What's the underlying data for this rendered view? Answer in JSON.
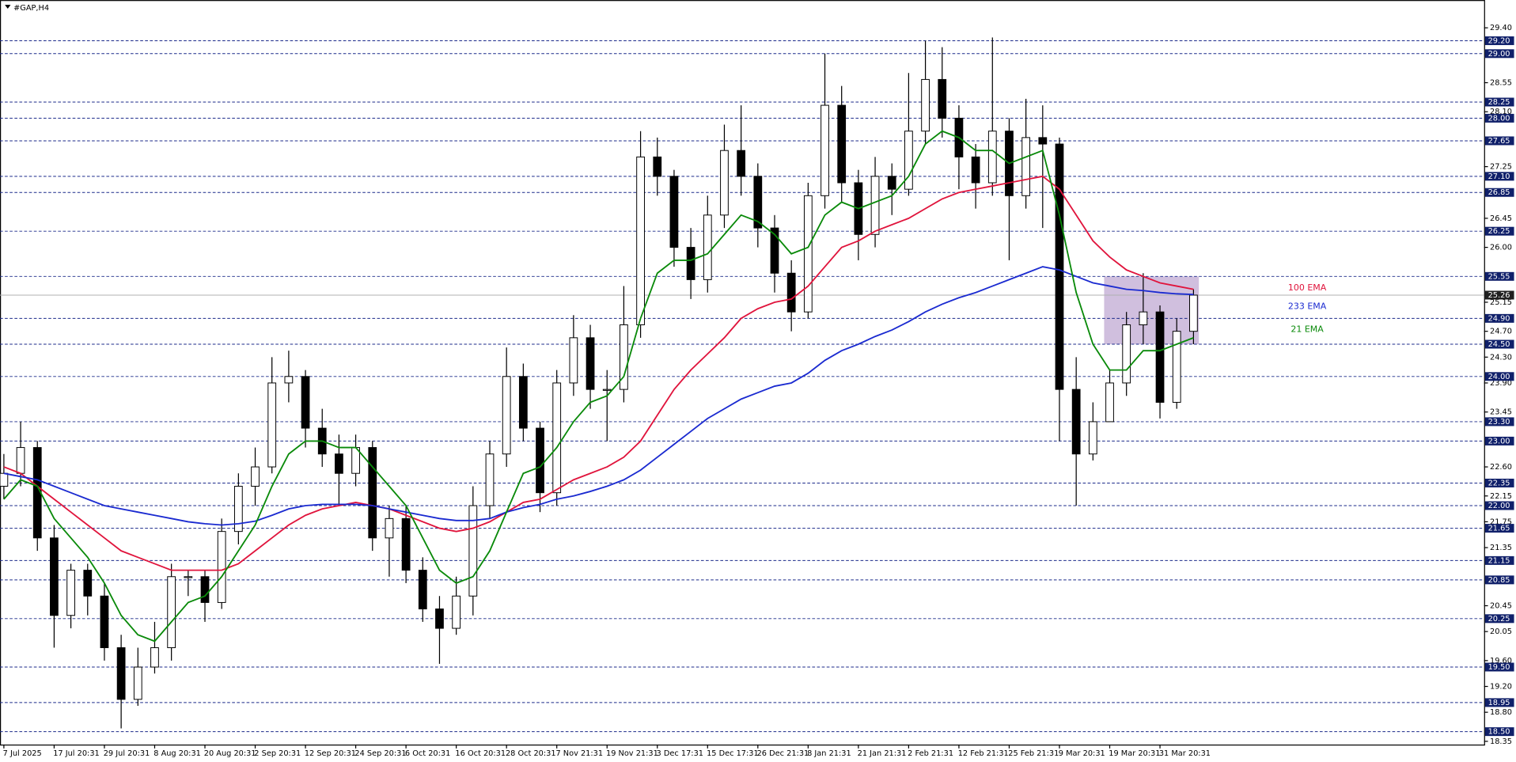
{
  "chart_data": {
    "type": "candlestick",
    "title": "#GAP,H4",
    "categories": [
      "7 Jul 2025",
      null,
      null,
      "17 Jul 20:31",
      null,
      null,
      "29 Jul 20:31",
      null,
      null,
      "8 Aug 20:31",
      null,
      null,
      "20 Aug 20:31",
      null,
      null,
      "2 Sep 20:31",
      null,
      null,
      "12 Sep 20:31",
      null,
      null,
      "24 Sep 20:31",
      null,
      null,
      "6 Oct 20:31",
      null,
      null,
      "16 Oct 20:31",
      null,
      null,
      "28 Oct 20:31",
      null,
      null,
      "7 Nov 21:31",
      null,
      null,
      "19 Nov 21:31",
      null,
      null,
      "3 Dec 17:31",
      null,
      null,
      "15 Dec 17:31",
      null,
      null,
      "26 Dec 21:31",
      null,
      null,
      "8 Jan 21:31",
      null,
      null,
      "21 Jan 21:31",
      null,
      null,
      "2 Feb 21:31",
      null,
      null,
      "12 Feb 21:31",
      null,
      null,
      "25 Feb 21:31",
      null,
      null,
      "9 Mar 20:31",
      null,
      null,
      "19 Mar 20:31",
      null,
      null,
      "31 Mar 20:31",
      null,
      null
    ],
    "open": [
      22.3,
      22.5,
      22.9,
      21.5,
      20.3,
      21.0,
      20.6,
      19.8,
      19.0,
      19.5,
      19.8,
      20.9,
      20.9,
      20.5,
      21.6,
      22.3,
      22.6,
      23.9,
      24.0,
      23.2,
      22.8,
      22.5,
      22.9,
      21.5,
      21.8,
      21.0,
      20.4,
      20.1,
      20.6,
      22.0,
      22.8,
      24.0,
      23.2,
      22.2,
      23.9,
      24.6,
      23.8,
      23.8,
      24.8,
      27.4,
      27.1,
      26.0,
      25.5,
      26.5,
      27.5,
      27.1,
      26.3,
      25.6,
      25.0,
      26.8,
      28.2,
      27.0,
      26.2,
      27.1,
      26.9,
      27.8,
      28.6,
      28.0,
      27.4,
      27.0,
      27.8,
      26.8,
      27.7,
      27.6,
      23.8,
      22.8,
      23.3,
      23.9,
      24.8,
      25.0,
      23.6,
      24.7
    ],
    "high": [
      22.8,
      23.3,
      23.0,
      21.7,
      21.1,
      21.1,
      20.8,
      20.0,
      19.8,
      20.2,
      21.1,
      21.0,
      21.0,
      21.8,
      22.5,
      22.9,
      24.3,
      24.4,
      24.1,
      23.5,
      23.1,
      23.1,
      23.0,
      22.0,
      22.0,
      21.2,
      20.6,
      20.9,
      22.3,
      23.0,
      24.45,
      24.2,
      23.3,
      24.1,
      24.95,
      24.8,
      24.1,
      25.4,
      27.8,
      27.7,
      27.2,
      26.3,
      26.8,
      27.9,
      28.2,
      27.3,
      26.5,
      25.8,
      27.0,
      29.0,
      28.5,
      27.2,
      27.4,
      27.3,
      28.7,
      29.2,
      29.1,
      28.2,
      27.6,
      29.25,
      28.0,
      28.3,
      28.2,
      27.7,
      24.3,
      23.6,
      24.1,
      25.0,
      25.6,
      25.1,
      24.9,
      25.35
    ],
    "low": [
      22.1,
      22.3,
      21.3,
      19.8,
      20.1,
      20.3,
      19.6,
      18.55,
      18.9,
      19.4,
      19.6,
      20.6,
      20.2,
      20.4,
      21.4,
      22.0,
      22.5,
      23.6,
      22.9,
      22.6,
      22.0,
      22.3,
      21.3,
      20.9,
      20.8,
      20.2,
      19.55,
      20.0,
      20.3,
      21.8,
      22.6,
      23.0,
      21.9,
      22.0,
      23.7,
      23.5,
      23.0,
      23.6,
      24.6,
      26.8,
      25.7,
      25.2,
      25.3,
      26.3,
      26.8,
      26.0,
      25.3,
      24.7,
      24.9,
      26.6,
      26.7,
      25.8,
      26.0,
      26.5,
      26.8,
      27.6,
      27.7,
      26.9,
      26.6,
      26.8,
      25.8,
      26.6,
      26.3,
      23.0,
      22.0,
      22.7,
      23.3,
      23.7,
      24.5,
      23.35,
      23.5,
      24.5
    ],
    "close": [
      22.5,
      22.9,
      21.5,
      20.3,
      21.0,
      20.6,
      19.8,
      19.0,
      19.5,
      19.8,
      20.9,
      20.9,
      20.5,
      21.6,
      22.3,
      22.6,
      23.9,
      24.0,
      23.2,
      22.8,
      22.5,
      22.9,
      21.5,
      21.8,
      21.0,
      20.4,
      20.1,
      20.6,
      22.0,
      22.8,
      24.0,
      23.2,
      22.2,
      23.9,
      24.6,
      23.8,
      23.8,
      24.8,
      27.4,
      27.1,
      26.0,
      25.5,
      26.5,
      27.5,
      27.1,
      26.3,
      25.6,
      25.0,
      26.8,
      28.2,
      27.0,
      26.2,
      27.1,
      26.9,
      27.8,
      28.6,
      28.0,
      27.4,
      27.0,
      27.8,
      26.8,
      27.7,
      27.6,
      23.8,
      22.8,
      23.3,
      23.9,
      24.8,
      25.0,
      23.6,
      24.7,
      25.26
    ],
    "series": [
      {
        "name": "100 EMA",
        "color": "#e0143c",
        "values": [
          22.6,
          22.5,
          22.3,
          22.1,
          21.9,
          21.7,
          21.5,
          21.3,
          21.2,
          21.1,
          21.0,
          21.0,
          21.0,
          21.0,
          21.1,
          21.3,
          21.5,
          21.7,
          21.85,
          21.95,
          22.0,
          22.05,
          22.0,
          21.95,
          21.85,
          21.75,
          21.65,
          21.6,
          21.65,
          21.75,
          21.9,
          22.05,
          22.1,
          22.25,
          22.4,
          22.5,
          22.6,
          22.75,
          23.0,
          23.4,
          23.8,
          24.1,
          24.35,
          24.6,
          24.9,
          25.05,
          25.15,
          25.2,
          25.4,
          25.7,
          26.0,
          26.1,
          26.25,
          26.35,
          26.45,
          26.6,
          26.75,
          26.85,
          26.9,
          26.95,
          27.0,
          27.05,
          27.1,
          26.9,
          26.5,
          26.1,
          25.85,
          25.65,
          25.55,
          25.45,
          25.4,
          25.35
        ]
      },
      {
        "name": "233 EMA",
        "color": "#1a2ad0",
        "values": [
          22.5,
          22.45,
          22.4,
          22.3,
          22.2,
          22.1,
          22.0,
          21.95,
          21.9,
          21.85,
          21.8,
          21.75,
          21.72,
          21.7,
          21.72,
          21.76,
          21.85,
          21.95,
          22.0,
          22.02,
          22.02,
          22.02,
          22.0,
          21.95,
          21.9,
          21.85,
          21.8,
          21.77,
          21.77,
          21.8,
          21.9,
          21.97,
          22.02,
          22.1,
          22.15,
          22.22,
          22.3,
          22.4,
          22.55,
          22.75,
          22.95,
          23.15,
          23.35,
          23.5,
          23.65,
          23.75,
          23.85,
          23.9,
          24.05,
          24.25,
          24.4,
          24.5,
          24.62,
          24.72,
          24.85,
          25.0,
          25.12,
          25.22,
          25.3,
          25.4,
          25.5,
          25.6,
          25.7,
          25.65,
          25.55,
          25.45,
          25.4,
          25.35,
          25.33,
          25.3,
          25.28,
          25.27
        ]
      },
      {
        "name": "21 EMA",
        "color": "#0a8a0a",
        "values": [
          22.1,
          22.4,
          22.3,
          21.8,
          21.5,
          21.2,
          20.8,
          20.3,
          20.0,
          19.9,
          20.2,
          20.5,
          20.6,
          20.9,
          21.3,
          21.7,
          22.3,
          22.8,
          23.0,
          23.0,
          22.9,
          22.9,
          22.6,
          22.3,
          22.0,
          21.5,
          21.0,
          20.8,
          20.9,
          21.3,
          21.9,
          22.5,
          22.6,
          22.9,
          23.3,
          23.6,
          23.7,
          24.0,
          24.9,
          25.6,
          25.8,
          25.8,
          25.9,
          26.2,
          26.5,
          26.4,
          26.2,
          25.9,
          26.0,
          26.5,
          26.7,
          26.6,
          26.7,
          26.8,
          27.1,
          27.6,
          27.8,
          27.7,
          27.5,
          27.5,
          27.3,
          27.4,
          27.5,
          26.5,
          25.3,
          24.5,
          24.1,
          24.1,
          24.4,
          24.4,
          24.5,
          24.6
        ]
      }
    ],
    "ylim": [
      18.3,
      29.8
    ],
    "yticks": [
      {
        "value": 29.4,
        "label": "29.40"
      },
      {
        "value": 28.55,
        "label": "28.55"
      },
      {
        "value": 28.1,
        "label": "28.10"
      },
      {
        "value": 27.25,
        "label": "27.25"
      },
      {
        "value": 26.45,
        "label": "26.45"
      },
      {
        "value": 26.0,
        "label": "26.00"
      },
      {
        "value": 25.15,
        "label": "25.15"
      },
      {
        "value": 24.7,
        "label": "24.70"
      },
      {
        "value": 24.3,
        "label": "24.30"
      },
      {
        "value": 23.9,
        "label": "23.90"
      },
      {
        "value": 23.45,
        "label": "23.45"
      },
      {
        "value": 22.6,
        "label": "22.60"
      },
      {
        "value": 22.15,
        "label": "22.15"
      },
      {
        "value": 21.75,
        "label": "21.75"
      },
      {
        "value": 21.35,
        "label": "21.35"
      },
      {
        "value": 20.45,
        "label": "20.45"
      },
      {
        "value": 20.05,
        "label": "20.05"
      },
      {
        "value": 19.6,
        "label": "19.60"
      },
      {
        "value": 19.2,
        "label": "19.20"
      },
      {
        "value": 18.8,
        "label": "18.80"
      },
      {
        "value": 18.35,
        "label": "18.35"
      }
    ],
    "levels": [
      {
        "value": 29.2,
        "label": "29.20"
      },
      {
        "value": 29.0,
        "label": "29.00"
      },
      {
        "value": 28.25,
        "label": "28.25"
      },
      {
        "value": 28.0,
        "label": "28.00"
      },
      {
        "value": 27.65,
        "label": "27.65"
      },
      {
        "value": 27.1,
        "label": "27.10"
      },
      {
        "value": 26.85,
        "label": "26.85"
      },
      {
        "value": 26.25,
        "label": "26.25"
      },
      {
        "value": 25.55,
        "label": "25.55"
      },
      {
        "value": 24.9,
        "label": "24.90"
      },
      {
        "value": 24.5,
        "label": "24.50"
      },
      {
        "value": 24.0,
        "label": "24.00"
      },
      {
        "value": 23.3,
        "label": "23.30"
      },
      {
        "value": 23.0,
        "label": "23.00"
      },
      {
        "value": 22.35,
        "label": "22.35"
      },
      {
        "value": 22.0,
        "label": "22.00"
      },
      {
        "value": 21.65,
        "label": "21.65"
      },
      {
        "value": 21.15,
        "label": "21.15"
      },
      {
        "value": 20.85,
        "label": "20.85"
      },
      {
        "value": 20.25,
        "label": "20.25"
      },
      {
        "value": 19.5,
        "label": "19.50"
      },
      {
        "value": 18.95,
        "label": "18.95"
      },
      {
        "value": 18.5,
        "label": "18.50"
      }
    ],
    "current_price": 25.26,
    "zone": {
      "low": 24.5,
      "high": 25.55,
      "color": "#c8b4d8"
    }
  }
}
